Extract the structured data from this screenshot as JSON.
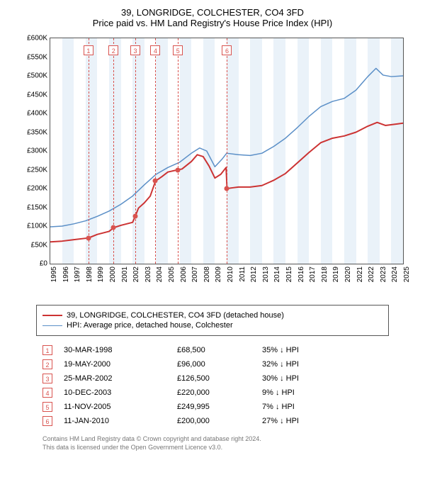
{
  "title": {
    "line1": "39, LONGRIDGE, COLCHESTER, CO4 3FD",
    "line2": "Price paid vs. HM Land Registry's House Price Index (HPI)"
  },
  "chart": {
    "type": "line",
    "background_color": "#ffffff",
    "band_color": "#eaf2f9",
    "border_color": "#555555",
    "ylabel_prefix": "£",
    "ylabel_suffix": "K",
    "ylim": [
      0,
      600
    ],
    "ytick_step": 50,
    "yticks": [
      0,
      50,
      100,
      150,
      200,
      250,
      300,
      350,
      400,
      450,
      500,
      550,
      600
    ],
    "xlim": [
      1995,
      2025
    ],
    "xticks": [
      1995,
      1996,
      1997,
      1998,
      1999,
      2000,
      2001,
      2002,
      2003,
      2004,
      2005,
      2006,
      2007,
      2008,
      2009,
      2010,
      2011,
      2012,
      2013,
      2014,
      2015,
      2016,
      2017,
      2018,
      2019,
      2020,
      2021,
      2022,
      2023,
      2024,
      2025
    ],
    "series": [
      {
        "id": "property",
        "label": "39, LONGRIDGE, COLCHESTER, CO4 3FD (detached house)",
        "color": "#cc3333",
        "line_width": 2,
        "points": [
          [
            1995.0,
            58
          ],
          [
            1996.0,
            60
          ],
          [
            1997.0,
            64
          ],
          [
            1998.25,
            68.5
          ],
          [
            1999.0,
            78
          ],
          [
            2000.0,
            86
          ],
          [
            2000.4,
            96
          ],
          [
            2001.0,
            102
          ],
          [
            2002.0,
            110
          ],
          [
            2002.23,
            126.5
          ],
          [
            2002.5,
            148
          ],
          [
            2003.0,
            162
          ],
          [
            2003.5,
            180
          ],
          [
            2003.95,
            220
          ],
          [
            2004.5,
            232
          ],
          [
            2005.0,
            244
          ],
          [
            2005.86,
            250
          ],
          [
            2006.2,
            252
          ],
          [
            2007.0,
            272
          ],
          [
            2007.5,
            290
          ],
          [
            2008.0,
            285
          ],
          [
            2008.5,
            260
          ],
          [
            2009.0,
            228
          ],
          [
            2009.5,
            238
          ],
          [
            2009.95,
            256
          ],
          [
            2010.03,
            200
          ],
          [
            2010.5,
            202
          ],
          [
            2011.0,
            204
          ],
          [
            2012.0,
            204
          ],
          [
            2013.0,
            208
          ],
          [
            2014.0,
            222
          ],
          [
            2015.0,
            240
          ],
          [
            2016.0,
            268
          ],
          [
            2017.0,
            296
          ],
          [
            2018.0,
            322
          ],
          [
            2019.0,
            334
          ],
          [
            2020.0,
            340
          ],
          [
            2021.0,
            350
          ],
          [
            2022.0,
            366
          ],
          [
            2022.8,
            376
          ],
          [
            2023.5,
            368
          ],
          [
            2024.5,
            372
          ],
          [
            2025.0,
            374
          ]
        ]
      },
      {
        "id": "hpi",
        "label": "HPI: Average price, detached house, Colchester",
        "color": "#5b8fc7",
        "line_width": 1.5,
        "points": [
          [
            1995.0,
            98
          ],
          [
            1996.0,
            100
          ],
          [
            1997.0,
            106
          ],
          [
            1998.0,
            114
          ],
          [
            1999.0,
            126
          ],
          [
            2000.0,
            140
          ],
          [
            2001.0,
            158
          ],
          [
            2002.0,
            180
          ],
          [
            2003.0,
            210
          ],
          [
            2004.0,
            238
          ],
          [
            2005.0,
            256
          ],
          [
            2006.0,
            270
          ],
          [
            2007.0,
            294
          ],
          [
            2007.7,
            308
          ],
          [
            2008.3,
            300
          ],
          [
            2009.0,
            258
          ],
          [
            2009.6,
            278
          ],
          [
            2010.0,
            294
          ],
          [
            2011.0,
            290
          ],
          [
            2012.0,
            288
          ],
          [
            2013.0,
            294
          ],
          [
            2014.0,
            312
          ],
          [
            2015.0,
            334
          ],
          [
            2016.0,
            362
          ],
          [
            2017.0,
            392
          ],
          [
            2018.0,
            418
          ],
          [
            2019.0,
            432
          ],
          [
            2020.0,
            440
          ],
          [
            2021.0,
            462
          ],
          [
            2022.0,
            498
          ],
          [
            2022.7,
            520
          ],
          [
            2023.3,
            502
          ],
          [
            2024.0,
            498
          ],
          [
            2025.0,
            500
          ]
        ]
      }
    ],
    "sale_markers": [
      {
        "n": "1",
        "year": 1998.25,
        "price": 68.5
      },
      {
        "n": "2",
        "year": 2000.38,
        "price": 96
      },
      {
        "n": "3",
        "year": 2002.23,
        "price": 126.5
      },
      {
        "n": "4",
        "year": 2003.94,
        "price": 220
      },
      {
        "n": "5",
        "year": 2005.86,
        "price": 250
      },
      {
        "n": "6",
        "year": 2010.03,
        "price": 200
      }
    ],
    "guide_color": "#d9534f",
    "marker_color": "#d9534f"
  },
  "legend": {
    "items": [
      {
        "color": "#cc3333",
        "label": "39, LONGRIDGE, COLCHESTER, CO4 3FD (detached house)",
        "width": 2
      },
      {
        "color": "#5b8fc7",
        "label": "HPI: Average price, detached house, Colchester",
        "width": 1.5
      }
    ]
  },
  "sales": [
    {
      "n": "1",
      "date": "30-MAR-1998",
      "price": "£68,500",
      "diff": "35% ↓ HPI"
    },
    {
      "n": "2",
      "date": "19-MAY-2000",
      "price": "£96,000",
      "diff": "32% ↓ HPI"
    },
    {
      "n": "3",
      "date": "25-MAR-2002",
      "price": "£126,500",
      "diff": "30% ↓ HPI"
    },
    {
      "n": "4",
      "date": "10-DEC-2003",
      "price": "£220,000",
      "diff": "9% ↓ HPI"
    },
    {
      "n": "5",
      "date": "11-NOV-2005",
      "price": "£249,995",
      "diff": "7% ↓ HPI"
    },
    {
      "n": "6",
      "date": "11-JAN-2010",
      "price": "£200,000",
      "diff": "27% ↓ HPI"
    }
  ],
  "footer": {
    "line1": "Contains HM Land Registry data © Crown copyright and database right 2024.",
    "line2": "This data is licensed under the Open Government Licence v3.0."
  }
}
